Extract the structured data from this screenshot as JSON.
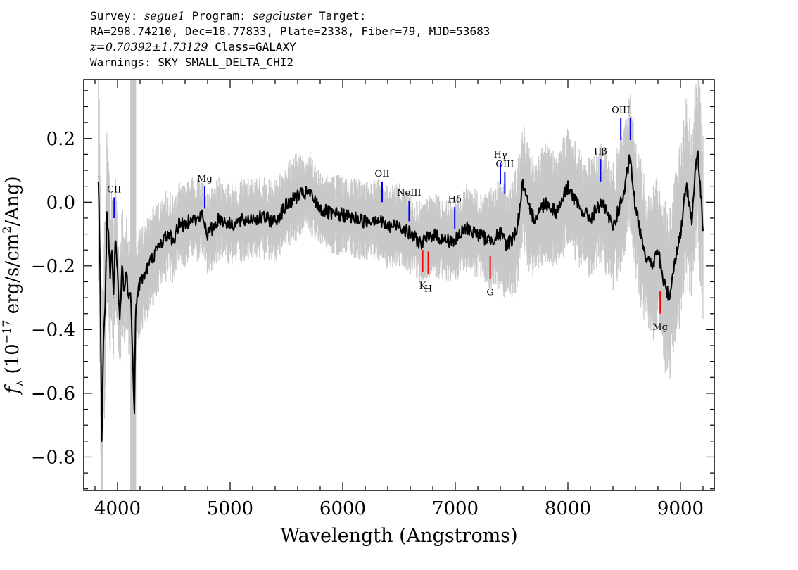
{
  "header": {
    "line1": {
      "survey_label": "Survey:",
      "survey": "segue1",
      "program_label": "Program:",
      "program": "segcluster",
      "target_label": "Target:"
    },
    "line2": "RA=298.74210, Dec=18.77833, Plate=2338, Fiber=79, MJD=53683",
    "line3": {
      "z": "z=0.70392±1.73129",
      "class": "Class=GALAXY"
    },
    "line4": "Warnings: SKY SMALL_DELTA_CHI2"
  },
  "chart_data": {
    "type": "line",
    "xlabel": "Wavelength (Angstroms)",
    "ylabel_parts": {
      "f": "f",
      "sub": "λ",
      "mid": " (10",
      "exp": "−17",
      "unit": " erg/s/cm",
      "sq": "2",
      "end": "/Ang)"
    },
    "xlim": [
      3700,
      9300
    ],
    "ylim": [
      -0.905,
      0.385
    ],
    "x_ticks": [
      4000,
      5000,
      6000,
      7000,
      8000,
      9000
    ],
    "x_tick_labels": [
      "4000",
      "5000",
      "6000",
      "7000",
      "8000",
      "9000"
    ],
    "y_ticks": [
      0.2,
      0.0,
      -0.2,
      -0.4,
      -0.6,
      -0.8
    ],
    "y_tick_labels": [
      "0.2",
      "0.0",
      "−0.2",
      "−0.4",
      "−0.6",
      "−0.8"
    ],
    "masked_band": [
      4113,
      4165
    ],
    "colors": {
      "flux": "#000000",
      "error": "#c8c8c8",
      "emission": "#0000ff",
      "absorption": "#ff0000",
      "mask": "#c8c8c8"
    },
    "series": [
      {
        "role": "flux",
        "x": [
          3830,
          3845,
          3860,
          3875,
          3890,
          3905,
          3920,
          3935,
          3950,
          3965,
          3980,
          4000,
          4020,
          4040,
          4060,
          4080,
          4100,
          4120,
          4140,
          4150,
          4160,
          4180,
          4200,
          4250,
          4300,
          4350,
          4400,
          4450,
          4500,
          4550,
          4600,
          4650,
          4700,
          4750,
          4800,
          4850,
          4900,
          4950,
          5000,
          5100,
          5200,
          5300,
          5400,
          5500,
          5600,
          5700,
          5800,
          5900,
          6000,
          6100,
          6200,
          6300,
          6400,
          6500,
          6600,
          6700,
          6800,
          6900,
          7000,
          7100,
          7200,
          7300,
          7400,
          7450,
          7500,
          7550,
          7600,
          7650,
          7700,
          7800,
          7900,
          8000,
          8100,
          8200,
          8300,
          8400,
          8500,
          8550,
          8600,
          8650,
          8700,
          8750,
          8800,
          8850,
          8900,
          8950,
          9000,
          9050,
          9100,
          9150,
          9200
        ],
        "y": [
          0.08,
          -0.2,
          -0.75,
          -0.45,
          -0.32,
          -0.05,
          -0.1,
          -0.25,
          -0.15,
          -0.3,
          -0.12,
          -0.22,
          -0.38,
          -0.2,
          -0.28,
          -0.22,
          -0.3,
          -0.3,
          -0.55,
          -0.65,
          -0.35,
          -0.28,
          -0.25,
          -0.22,
          -0.18,
          -0.15,
          -0.12,
          -0.1,
          -0.12,
          -0.06,
          -0.08,
          -0.04,
          -0.06,
          -0.04,
          -0.1,
          -0.08,
          -0.05,
          -0.06,
          -0.07,
          -0.06,
          -0.05,
          -0.05,
          -0.06,
          -0.01,
          0.02,
          0.03,
          -0.02,
          -0.04,
          -0.04,
          -0.05,
          -0.06,
          -0.05,
          -0.08,
          -0.07,
          -0.1,
          -0.13,
          -0.1,
          -0.12,
          -0.12,
          -0.08,
          -0.1,
          -0.12,
          -0.1,
          -0.13,
          -0.12,
          -0.08,
          0.06,
          -0.02,
          -0.05,
          0.0,
          -0.03,
          0.05,
          -0.02,
          -0.05,
          0.0,
          -0.08,
          0.03,
          0.14,
          -0.02,
          -0.1,
          -0.18,
          -0.2,
          -0.15,
          -0.25,
          -0.3,
          -0.18,
          -0.1,
          0.05,
          -0.05,
          0.17,
          -0.08
        ]
      },
      {
        "role": "error",
        "x": [
          3830,
          3900,
          4000,
          4200,
          4400,
          4600,
          4800,
          5000,
          5200,
          5400,
          5600,
          5800,
          6000,
          6200,
          6400,
          6600,
          6800,
          7000,
          7200,
          7400,
          7600,
          7800,
          8000,
          8200,
          8400,
          8600,
          8800,
          9000,
          9200
        ],
        "y": [
          0.3,
          0.2,
          0.15,
          0.12,
          0.1,
          0.09,
          0.09,
          0.09,
          0.09,
          0.09,
          0.1,
          0.09,
          0.09,
          0.09,
          0.09,
          0.09,
          0.09,
          0.09,
          0.1,
          0.12,
          0.14,
          0.13,
          0.13,
          0.13,
          0.14,
          0.16,
          0.18,
          0.2,
          0.22
        ]
      }
    ],
    "line_markers": [
      {
        "label": "CII",
        "type": "emission",
        "x": 3970,
        "y0": -0.05,
        "y1": 0.015,
        "label_y": 0.03
      },
      {
        "label": "Mg",
        "type": "emission",
        "x": 4775,
        "y0": -0.02,
        "y1": 0.05,
        "label_y": 0.065
      },
      {
        "label": "OII",
        "type": "emission",
        "x": 6350,
        "y0": 0.0,
        "y1": 0.065,
        "label_y": 0.08
      },
      {
        "label": "NeIII",
        "type": "emission",
        "x": 6590,
        "y0": -0.06,
        "y1": 0.005,
        "label_y": 0.02
      },
      {
        "label": "Hδ",
        "type": "emission",
        "x": 6995,
        "y0": -0.085,
        "y1": -0.015,
        "label_y": 0.0
      },
      {
        "label": "Hγ",
        "type": "emission",
        "x": 7400,
        "y0": 0.055,
        "y1": 0.125,
        "label_y": 0.14
      },
      {
        "label": "OIII",
        "type": "emission",
        "x": 7440,
        "y0": 0.025,
        "y1": 0.095,
        "label_y": 0.11
      },
      {
        "label": "Hβ",
        "type": "emission",
        "x": 8290,
        "y0": 0.065,
        "y1": 0.135,
        "label_y": 0.15
      },
      {
        "label": "OIII",
        "type": "emission",
        "x": 8470,
        "y0": 0.195,
        "y1": 0.265,
        "label_y": 0.28
      },
      {
        "label": "",
        "type": "emission",
        "x": 8555,
        "y0": 0.195,
        "y1": 0.265,
        "label_y": 0.28
      },
      {
        "label": "K",
        "type": "absorption",
        "x": 6710,
        "y0": -0.22,
        "y1": -0.15,
        "label_y": -0.245
      },
      {
        "label": "H",
        "type": "absorption",
        "x": 6760,
        "y0": -0.225,
        "y1": -0.155,
        "label_y": -0.255
      },
      {
        "label": "G",
        "type": "absorption",
        "x": 7310,
        "y0": -0.24,
        "y1": -0.17,
        "label_y": -0.265
      },
      {
        "label": "Mg",
        "type": "absorption",
        "x": 8820,
        "y0": -0.35,
        "y1": -0.28,
        "label_y": -0.375
      }
    ]
  }
}
